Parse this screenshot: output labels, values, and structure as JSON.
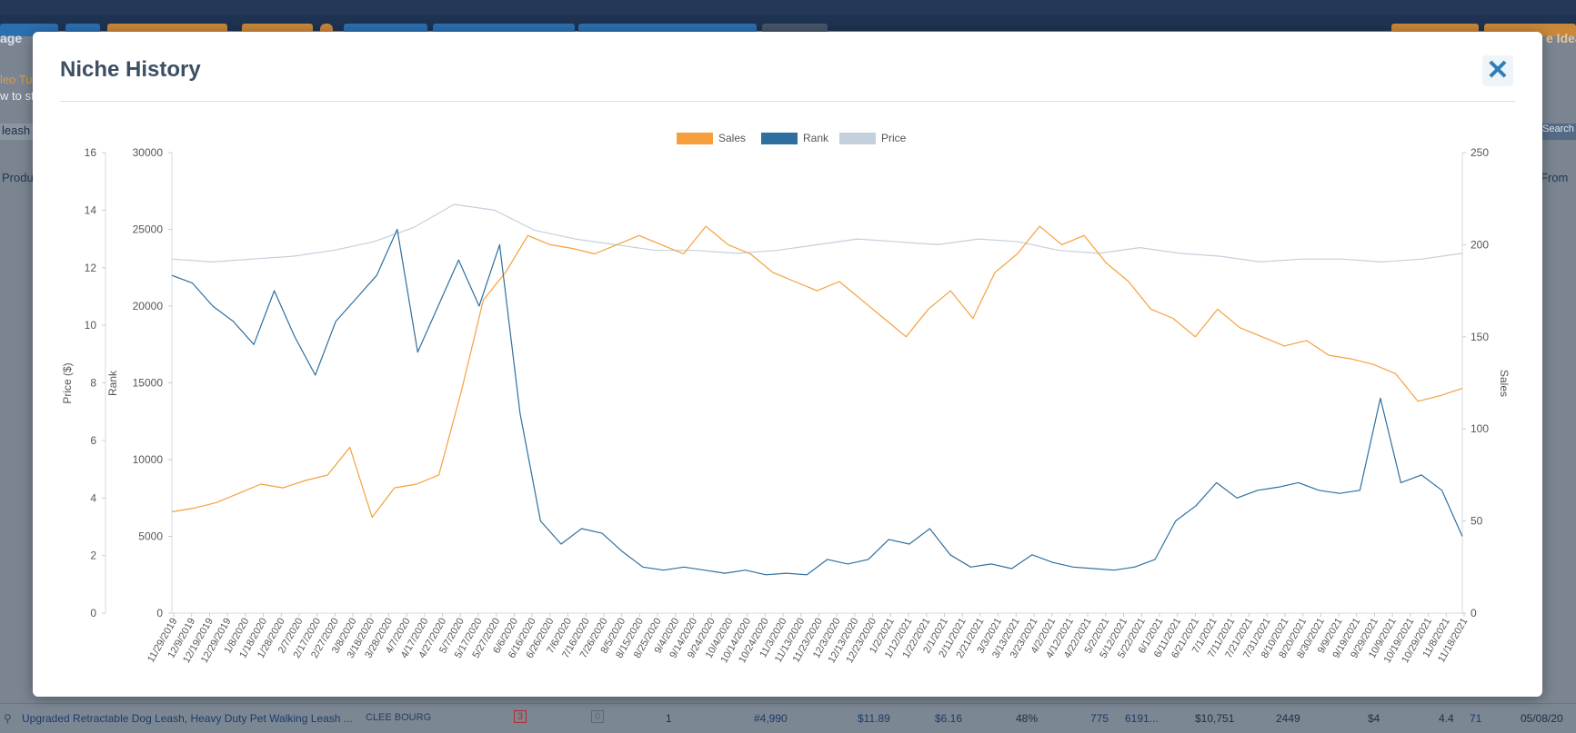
{
  "modal": {
    "title": "Niche History",
    "close_label": "✕"
  },
  "background": {
    "top_left": "age",
    "top_right": "e Idea",
    "video_line1": "leo Tut",
    "video_line2": "w to st",
    "search_value": "leash",
    "search_btn": "Search",
    "col_product": "Produ",
    "col_from": "From",
    "row": {
      "title": "Upgraded Retractable Dog Leash, Heavy Duty Pet Walking Leash ...",
      "brand": "CLEE BOURG",
      "sellers": "3",
      "fba": "0",
      "variations": "1",
      "rank": "#4,990",
      "price": "$11.89",
      "fees": "$6.16",
      "margin": "48%",
      "sales": "775",
      "asin": "6191...",
      "revenue": "$10,751",
      "reviews": "2449",
      "rev_per_review": "$4",
      "rating": "4.4",
      "weight": "71",
      "date": "05/08/20"
    }
  },
  "chart_data": {
    "type": "line",
    "legend": [
      "Sales",
      "Rank",
      "Price"
    ],
    "colors": {
      "Sales": "#f5a03c",
      "Rank": "#2f6f9f",
      "Price": "#c4d0dc"
    },
    "axes": {
      "price": {
        "label": "Price ($)",
        "min": 0,
        "max": 16,
        "ticks": [
          "0",
          "2",
          "4",
          "6",
          "8",
          "10",
          "12",
          "14",
          "16"
        ]
      },
      "rank": {
        "label": "Rank",
        "min": 0,
        "max": 30000,
        "ticks": [
          "0",
          "5000",
          "10000",
          "15000",
          "20000",
          "25000",
          "30000"
        ]
      },
      "sales": {
        "label": "Sales",
        "min": 0,
        "max": 250,
        "ticks": [
          "0",
          "50",
          "100",
          "150",
          "200",
          "250"
        ]
      }
    },
    "x_labels": [
      "11/29/2019",
      "12/9/2019",
      "12/19/2019",
      "12/29/2019",
      "1/8/2020",
      "1/18/2020",
      "1/28/2020",
      "2/7/2020",
      "2/17/2020",
      "2/27/2020",
      "3/8/2020",
      "3/18/2020",
      "3/28/2020",
      "4/7/2020",
      "4/17/2020",
      "4/27/2020",
      "5/7/2020",
      "5/17/2020",
      "5/27/2020",
      "6/6/2020",
      "6/16/2020",
      "6/26/2020",
      "7/6/2020",
      "7/16/2020",
      "7/26/2020",
      "8/5/2020",
      "8/15/2020",
      "8/25/2020",
      "9/4/2020",
      "9/14/2020",
      "9/24/2020",
      "10/4/2020",
      "10/14/2020",
      "10/24/2020",
      "11/3/2020",
      "11/13/2020",
      "11/23/2020",
      "12/3/2020",
      "12/13/2020",
      "12/23/2020",
      "1/2/2021",
      "1/12/2021",
      "1/22/2021",
      "2/1/2021",
      "2/11/2021",
      "2/21/2021",
      "3/3/2021",
      "3/13/2021",
      "3/23/2021",
      "4/2/2021",
      "4/12/2021",
      "4/22/2021",
      "5/2/2021",
      "5/12/2021",
      "5/22/2021",
      "6/1/2021",
      "6/11/2021",
      "6/21/2021",
      "7/1/2021",
      "7/11/2021",
      "7/21/2021",
      "7/31/2021",
      "8/10/2021",
      "8/20/2021",
      "8/30/2021",
      "9/9/2021",
      "9/19/2021",
      "9/29/2021",
      "10/9/2021",
      "10/19/2021",
      "10/29/2021",
      "11/8/2021",
      "11/18/2021"
    ],
    "series": [
      {
        "name": "Sales",
        "axis": "sales",
        "values": [
          55,
          57,
          60,
          65,
          70,
          68,
          72,
          75,
          90,
          52,
          68,
          70,
          75,
          120,
          170,
          185,
          205,
          200,
          198,
          195,
          200,
          205,
          200,
          195,
          210,
          200,
          195,
          185,
          180,
          175,
          180,
          170,
          160,
          150,
          165,
          175,
          160,
          185,
          195,
          210,
          200,
          205,
          190,
          180,
          165,
          160,
          150,
          165,
          155,
          150,
          145,
          148,
          140,
          138,
          135,
          130,
          115,
          118,
          122
        ]
      },
      {
        "name": "Rank",
        "axis": "rank",
        "values": [
          22000,
          21500,
          20000,
          19000,
          17500,
          21000,
          18000,
          15500,
          19000,
          20500,
          22000,
          25000,
          17000,
          20000,
          23000,
          20000,
          24000,
          13000,
          6000,
          4500,
          5500,
          5200,
          4000,
          3000,
          2800,
          3000,
          2800,
          2600,
          2800,
          2500,
          2600,
          2500,
          3500,
          3200,
          3500,
          4800,
          4500,
          5500,
          3800,
          3000,
          3200,
          2900,
          3800,
          3300,
          3000,
          2900,
          2800,
          3000,
          3500,
          6000,
          7000,
          8500,
          7500,
          8000,
          8200,
          8500,
          8000,
          7800,
          8000,
          14000,
          8500,
          9000,
          8000,
          5000
        ]
      },
      {
        "name": "Price",
        "axis": "price",
        "values": [
          12.3,
          12.2,
          12.3,
          12.4,
          12.6,
          12.9,
          13.4,
          14.2,
          14.0,
          13.3,
          13.0,
          12.8,
          12.6,
          12.6,
          12.5,
          12.6,
          12.8,
          13.0,
          12.9,
          12.8,
          13.0,
          12.9,
          12.6,
          12.5,
          12.7,
          12.5,
          12.4,
          12.2,
          12.3,
          12.3,
          12.2,
          12.3,
          12.5
        ]
      }
    ]
  }
}
